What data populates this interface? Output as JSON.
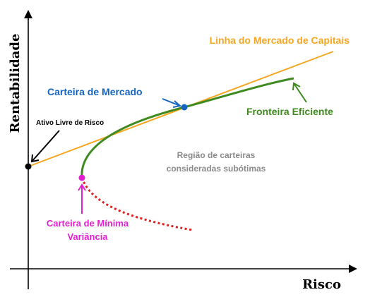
{
  "axes": {
    "y_label": "Rentabilidade",
    "x_label": "Risco"
  },
  "labels": {
    "cml": "Linha do Mercado de Capitais",
    "market_portfolio": "Carteira de Mercado",
    "efficient_frontier": "Fronteira Eficiente",
    "risk_free": "Ativo Livre de Risco",
    "suboptimal_line1": "Região de carteiras",
    "suboptimal_line2": "consideradas subótimas",
    "min_variance_line1": "Carteira de Mínima",
    "min_variance_line2": "Variância"
  },
  "colors": {
    "cml": "#f5a623",
    "frontier": "#3f8a1e",
    "market": "#1565c0",
    "min_variance": "#e020d0",
    "inefficient": "#e02020",
    "suboptimal_text": "#8a8a8a",
    "axis": "#000000"
  }
}
